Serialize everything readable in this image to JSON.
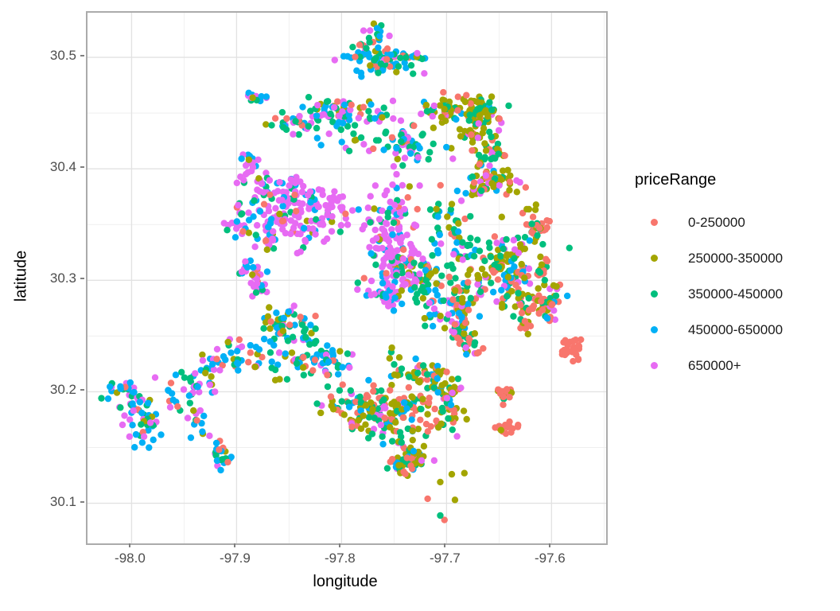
{
  "chart_data": {
    "type": "scatter",
    "title": "",
    "xlabel": "longitude",
    "ylabel": "latitude",
    "legend_title": "priceRange",
    "legend_position": "right",
    "grid": true,
    "point_radius": 4.2,
    "axes": {
      "xlim": [
        -98.042,
        -97.548
      ],
      "ylim": [
        30.064,
        30.54
      ],
      "xticks": [
        {
          "value": -98.0,
          "label": "-98.0"
        },
        {
          "value": -97.9,
          "label": "-97.9"
        },
        {
          "value": -97.8,
          "label": "-97.8"
        },
        {
          "value": -97.7,
          "label": "-97.7"
        },
        {
          "value": -97.6,
          "label": "-97.6"
        }
      ],
      "yticks": [
        {
          "value": 30.5,
          "label": "30.5"
        },
        {
          "value": 30.4,
          "label": "30.4"
        },
        {
          "value": 30.3,
          "label": "30.3"
        },
        {
          "value": 30.2,
          "label": "30.2"
        },
        {
          "value": 30.1,
          "label": "30.1"
        }
      ],
      "xminor": [
        -97.95,
        -97.85,
        -97.75,
        -97.65,
        -97.55
      ],
      "yminor": [
        30.45,
        30.35,
        30.25,
        30.15
      ]
    },
    "categories": [
      {
        "label": "0-250000",
        "color": "#F8766D"
      },
      {
        "label": "250000-350000",
        "color": "#A3A500"
      },
      {
        "label": "350000-450000",
        "color": "#00BF7D"
      },
      {
        "label": "450000-650000",
        "color": "#00B0F6"
      },
      {
        "label": "650000+",
        "color": "#E76BF3"
      }
    ],
    "clusters": [
      {
        "lon": -97.765,
        "lat": 30.5,
        "sx": 0.027,
        "sy": 0.013,
        "n": 95,
        "weights": [
          0.1,
          0.15,
          0.28,
          0.32,
          0.15
        ]
      },
      {
        "lon": -97.795,
        "lat": 30.447,
        "sx": 0.046,
        "sy": 0.012,
        "n": 115,
        "weights": [
          0.07,
          0.1,
          0.25,
          0.35,
          0.23
        ]
      },
      {
        "lon": -97.675,
        "lat": 30.452,
        "sx": 0.02,
        "sy": 0.019,
        "n": 120,
        "weights": [
          0.15,
          0.5,
          0.2,
          0.08,
          0.07
        ]
      },
      {
        "lon": -97.662,
        "lat": 30.396,
        "sx": 0.017,
        "sy": 0.015,
        "n": 85,
        "weights": [
          0.3,
          0.4,
          0.15,
          0.1,
          0.05
        ]
      },
      {
        "lon": -97.616,
        "lat": 30.356,
        "sx": 0.009,
        "sy": 0.022,
        "n": 45,
        "weights": [
          0.55,
          0.28,
          0.17,
          0.0,
          0.0
        ]
      },
      {
        "lon": -97.88,
        "lat": 30.368,
        "sx": 0.026,
        "sy": 0.02,
        "n": 95,
        "weights": [
          0.05,
          0.06,
          0.15,
          0.21,
          0.53
        ]
      },
      {
        "lon": -97.82,
        "lat": 30.352,
        "sx": 0.03,
        "sy": 0.024,
        "n": 130,
        "weights": [
          0.04,
          0.03,
          0.08,
          0.1,
          0.75
        ]
      },
      {
        "lon": -97.758,
        "lat": 30.342,
        "sx": 0.024,
        "sy": 0.028,
        "n": 105,
        "weights": [
          0.05,
          0.05,
          0.1,
          0.15,
          0.65
        ]
      },
      {
        "lon": -97.745,
        "lat": 30.288,
        "sx": 0.017,
        "sy": 0.02,
        "n": 120,
        "weights": [
          0.05,
          0.05,
          0.1,
          0.2,
          0.6
        ]
      },
      {
        "lon": -97.7,
        "lat": 30.32,
        "sx": 0.024,
        "sy": 0.03,
        "n": 165,
        "weights": [
          0.1,
          0.2,
          0.28,
          0.3,
          0.12
        ]
      },
      {
        "lon": -97.655,
        "lat": 30.312,
        "sx": 0.019,
        "sy": 0.024,
        "n": 135,
        "weights": [
          0.2,
          0.3,
          0.25,
          0.15,
          0.1
        ]
      },
      {
        "lon": -97.608,
        "lat": 30.27,
        "sx": 0.013,
        "sy": 0.015,
        "n": 45,
        "weights": [
          0.55,
          0.2,
          0.15,
          0.05,
          0.05
        ]
      },
      {
        "lon": -97.585,
        "lat": 30.24,
        "sx": 0.008,
        "sy": 0.012,
        "n": 32,
        "weights": [
          1.0,
          0.0,
          0.0,
          0.0,
          0.0
        ]
      },
      {
        "lon": -97.634,
        "lat": 30.166,
        "sx": 0.014,
        "sy": 0.007,
        "n": 24,
        "weights": [
          0.9,
          0.1,
          0.0,
          0.0,
          0.0
        ]
      },
      {
        "lon": -97.645,
        "lat": 30.213,
        "sx": 0.009,
        "sy": 0.011,
        "n": 16,
        "weights": [
          0.5,
          0.3,
          0.2,
          0.0,
          0.0
        ]
      },
      {
        "lon": -97.76,
        "lat": 30.192,
        "sx": 0.029,
        "sy": 0.024,
        "n": 200,
        "weights": [
          0.22,
          0.32,
          0.28,
          0.1,
          0.08
        ]
      },
      {
        "lon": -97.718,
        "lat": 30.186,
        "sx": 0.019,
        "sy": 0.019,
        "n": 90,
        "weights": [
          0.4,
          0.3,
          0.15,
          0.1,
          0.05
        ]
      },
      {
        "lon": -97.842,
        "lat": 30.232,
        "sx": 0.024,
        "sy": 0.019,
        "n": 110,
        "weights": [
          0.1,
          0.15,
          0.3,
          0.3,
          0.15
        ]
      },
      {
        "lon": -97.92,
        "lat": 30.205,
        "sx": 0.024,
        "sy": 0.021,
        "n": 90,
        "weights": [
          0.1,
          0.15,
          0.15,
          0.4,
          0.2
        ]
      },
      {
        "lon": -97.993,
        "lat": 30.192,
        "sx": 0.017,
        "sy": 0.024,
        "n": 80,
        "weights": [
          0.08,
          0.12,
          0.2,
          0.35,
          0.25
        ]
      },
      {
        "lon": -97.928,
        "lat": 30.14,
        "sx": 0.011,
        "sy": 0.011,
        "n": 28,
        "weights": [
          0.1,
          0.05,
          0.2,
          0.3,
          0.35
        ]
      },
      {
        "lon": -97.74,
        "lat": 30.14,
        "sx": 0.021,
        "sy": 0.011,
        "n": 60,
        "weights": [
          0.2,
          0.35,
          0.3,
          0.1,
          0.05
        ]
      },
      {
        "lon": -97.74,
        "lat": 30.424,
        "sx": 0.028,
        "sy": 0.014,
        "n": 70,
        "weights": [
          0.1,
          0.1,
          0.33,
          0.22,
          0.25
        ]
      },
      {
        "lon": -97.888,
        "lat": 30.312,
        "sx": 0.014,
        "sy": 0.015,
        "n": 50,
        "weights": [
          0.05,
          0.02,
          0.1,
          0.15,
          0.68
        ]
      },
      {
        "lon": -97.618,
        "lat": 30.302,
        "sx": 0.008,
        "sy": 0.022,
        "n": 25,
        "weights": [
          0.55,
          0.25,
          0.2,
          0.0,
          0.0
        ]
      },
      {
        "lon": -97.682,
        "lat": 30.247,
        "sx": 0.014,
        "sy": 0.015,
        "n": 60,
        "weights": [
          0.25,
          0.15,
          0.2,
          0.1,
          0.3
        ]
      },
      {
        "lon": -97.874,
        "lat": 30.471,
        "sx": 0.012,
        "sy": 0.009,
        "n": 20,
        "weights": [
          0.05,
          0.1,
          0.2,
          0.45,
          0.2
        ]
      },
      {
        "lon": -97.885,
        "lat": 30.425,
        "sx": 0.012,
        "sy": 0.01,
        "n": 15,
        "weights": [
          0.05,
          0.1,
          0.2,
          0.2,
          0.45
        ]
      }
    ],
    "singles": [
      {
        "lon": -97.585,
        "lat": 30.286,
        "cat": 3
      },
      {
        "lon": -97.583,
        "lat": 30.329,
        "cat": 2
      },
      {
        "lon": -97.592,
        "lat": 30.296,
        "cat": 0
      },
      {
        "lon": -97.69,
        "lat": 30.16,
        "cat": 4
      },
      {
        "lon": -97.694,
        "lat": 30.409,
        "cat": 4
      },
      {
        "lon": -97.695,
        "lat": 30.126,
        "cat": 1
      },
      {
        "lon": -97.683,
        "lat": 30.127,
        "cat": 1
      },
      {
        "lon": -97.706,
        "lat": 30.119,
        "cat": 1
      },
      {
        "lon": -97.692,
        "lat": 30.103,
        "cat": 1
      },
      {
        "lon": -97.718,
        "lat": 30.104,
        "cat": 0
      },
      {
        "lon": -97.702,
        "lat": 30.085,
        "cat": 0
      },
      {
        "lon": -97.706,
        "lat": 30.089,
        "cat": 2
      }
    ],
    "layout": {
      "panel_background": "#FFFFFF",
      "panel_border": "#ABABAB",
      "grid_major_color": "#E2E2E2",
      "grid_minor_color": "#EFEFEF",
      "tick_color": "#7F7F7F",
      "tick_label_color": "#4D4D4D",
      "axis_title_color": "#000000",
      "background": "#FFFFFF"
    }
  }
}
